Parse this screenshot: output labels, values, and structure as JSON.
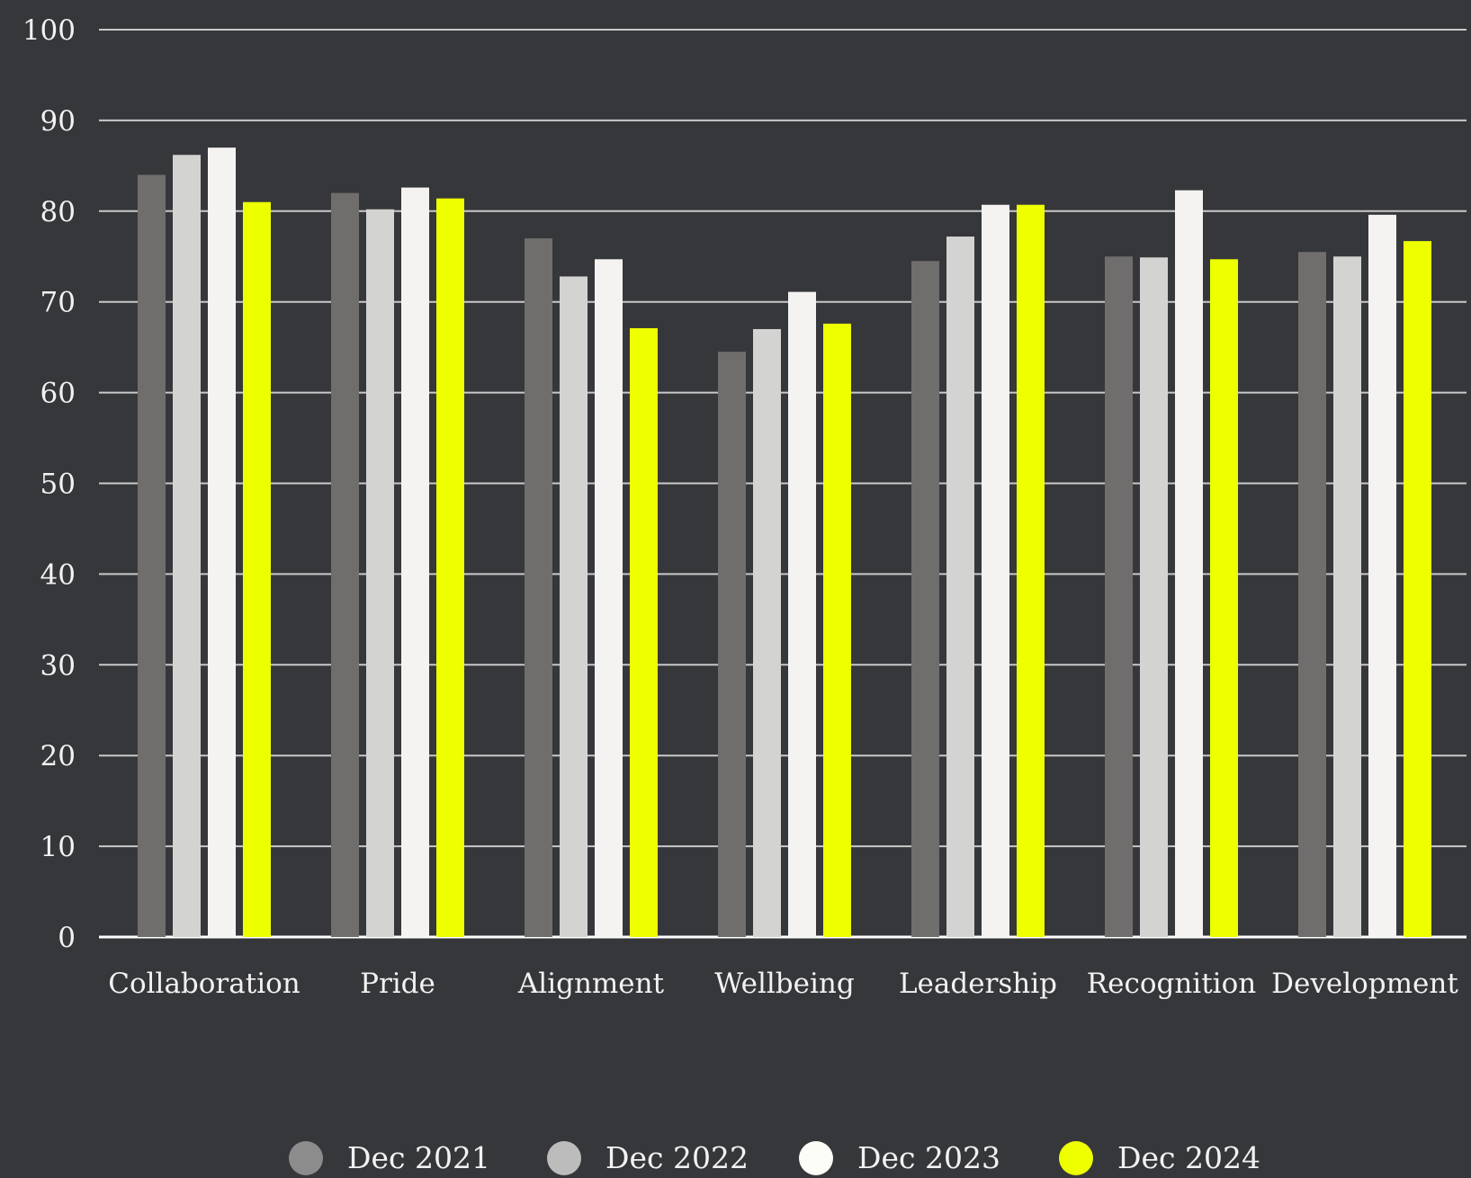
{
  "chart_data": {
    "type": "bar",
    "title": "",
    "xlabel": "",
    "ylabel": "",
    "ylim": [
      0,
      100
    ],
    "yticks": [
      "0",
      "10",
      "20",
      "30",
      "40",
      "50",
      "60",
      "70",
      "80",
      "90",
      "100"
    ],
    "grid": true,
    "legend_position": "bottom",
    "categories": [
      "Collaboration",
      "Pride",
      "Alignment",
      "Wellbeing",
      "Leadership",
      "Recognition",
      "Development"
    ],
    "series": [
      {
        "name": "Dec 2021",
        "color": "#6f6e6c",
        "legend_color": "#8c8c8c",
        "values": [
          84,
          82,
          77,
          64.5,
          74.5,
          75,
          75.5
        ]
      },
      {
        "name": "Dec 2022",
        "color": "#d3d3d1",
        "legend_color": "#bcbcbc",
        "values": [
          86.2,
          80.2,
          72.8,
          67,
          77.2,
          74.9,
          75
        ]
      },
      {
        "name": "Dec 2023",
        "color": "#f4f3f1",
        "legend_color": "#fdfdf7",
        "values": [
          87,
          82.6,
          74.7,
          71.1,
          80.7,
          82.3,
          79.6
        ]
      },
      {
        "name": "Dec 2024",
        "color": "#eeff00",
        "legend_color": "#eeff00",
        "values": [
          81,
          81.4,
          67.1,
          67.6,
          80.7,
          74.7,
          76.7
        ]
      }
    ]
  }
}
